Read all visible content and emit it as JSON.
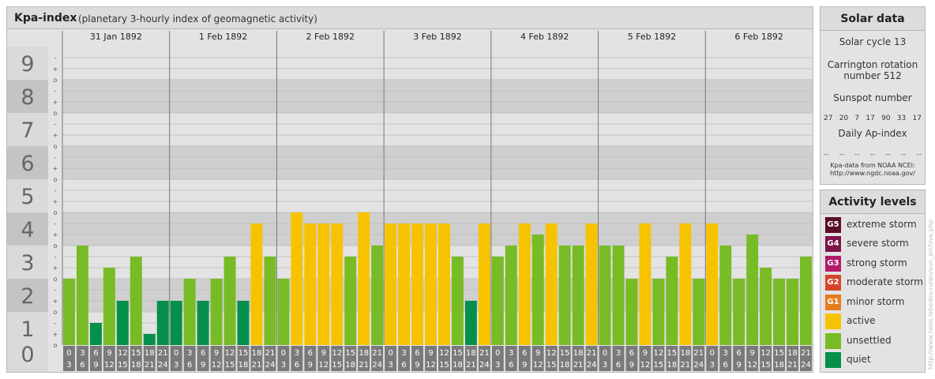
{
  "header": {
    "title": "Kpa-index",
    "subtitle": "(planetary 3-hourly index of geomagnetic activity)"
  },
  "chart_data": {
    "type": "bar",
    "ylim": [
      0,
      9
    ],
    "y_tick_labels": [
      "0",
      "1",
      "2",
      "3",
      "4",
      "5",
      "6",
      "7",
      "8",
      "9"
    ],
    "sub_tick_labels": [
      "o",
      "+",
      "-"
    ],
    "days": [
      "31 Jan 1892",
      "1 Feb 1892",
      "2 Feb 1892",
      "3 Feb 1892",
      "4 Feb 1892",
      "5 Feb 1892",
      "6 Feb 1892"
    ],
    "interval_start_labels": [
      "0",
      "3",
      "6",
      "9",
      "12",
      "15",
      "18",
      "21"
    ],
    "interval_end_labels": [
      "3",
      "6",
      "9",
      "12",
      "15",
      "18",
      "21",
      "24"
    ],
    "values": [
      2,
      3,
      0.667,
      2.333,
      1.333,
      2.667,
      0.333,
      1.333,
      1.333,
      2,
      1.333,
      2,
      2.667,
      1.333,
      3.667,
      2.667,
      2,
      4,
      3.667,
      3.667,
      3.667,
      2.667,
      4,
      3,
      3.667,
      3.667,
      3.667,
      3.667,
      3.667,
      2.667,
      1.333,
      3.667,
      2.667,
      3,
      3.667,
      3.333,
      3.667,
      3,
      3,
      3.667,
      3,
      3,
      2,
      3.667,
      2,
      2.667,
      3.667,
      2,
      3.667,
      3,
      2,
      3.333,
      2.333,
      2,
      2,
      2.667
    ],
    "colors": {
      "quiet": "#04904a",
      "unsettled": "#77bb25",
      "active": "#f7c300"
    },
    "band_colors": {
      "light": "#e3e3e3",
      "dark": "#cfcfcf",
      "label_light": "#dadada",
      "label_dark": "#c4c4c4"
    },
    "grid": true
  },
  "solar": {
    "title": "Solar data",
    "cycle": "Solar cycle 13",
    "carrington_line1": "Carrington rotation",
    "carrington_line2": "number 512",
    "sunspot_title": "Sunspot number",
    "sunspot_values": [
      "27",
      "20",
      "7",
      "17",
      "90",
      "33",
      "17"
    ],
    "ap_title": "Daily Ap-index",
    "ap_values": [
      "--",
      "--",
      "--",
      "--",
      "--",
      "--",
      "--"
    ],
    "source_line1": "Kpa-data from NOAA NCEI:",
    "source_line2": "http://www.ngdc.noaa.gov/"
  },
  "levels": {
    "title": "Activity levels",
    "items": [
      {
        "badge": "G5",
        "label": "extreme storm",
        "color": "#5a0d2a"
      },
      {
        "badge": "G4",
        "label": "severe storm",
        "color": "#7d1548"
      },
      {
        "badge": "G3",
        "label": "strong storm",
        "color": "#b31a6b"
      },
      {
        "badge": "G2",
        "label": "moderate storm",
        "color": "#d7442c"
      },
      {
        "badge": "G1",
        "label": "minor storm",
        "color": "#e67c1f"
      },
      {
        "badge": "",
        "label": "active",
        "color": "#f7c300"
      },
      {
        "badge": "",
        "label": "unsettled",
        "color": "#77bb25"
      },
      {
        "badge": "",
        "label": "quiet",
        "color": "#04904a"
      }
    ]
  },
  "credit": "http://www.tesis.lebedev.ru/en/sun_archive.php"
}
